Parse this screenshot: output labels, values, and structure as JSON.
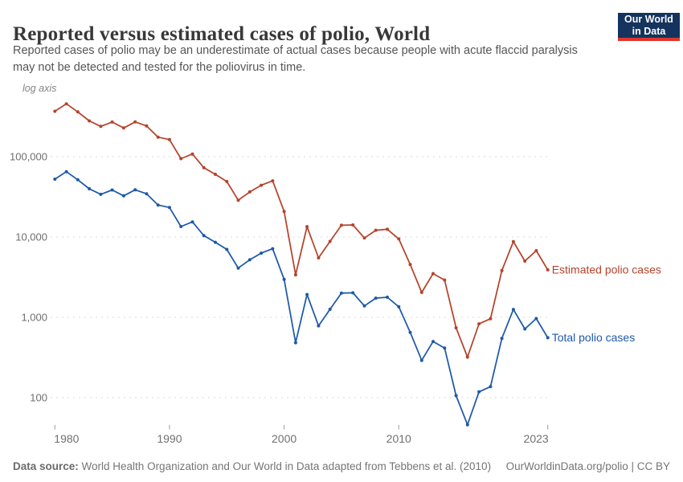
{
  "header": {
    "title": "Reported versus estimated cases of polio, World",
    "subtitle_line1": "Reported cases of polio may be an underestimate of actual cases because people with acute flaccid paralysis",
    "subtitle_line2": "may not be detected and tested for the poliovirus in time.",
    "logo": {
      "line1": "Our World",
      "line2": "in Data",
      "bg_color": "#14335D",
      "accent_color": "#E0352C"
    }
  },
  "chart_data": {
    "type": "line",
    "scale": "log",
    "log_axis_label": "log axis",
    "title": "Reported versus estimated cases of polio, World",
    "x_label": "",
    "y_label": "",
    "grid": "dashed-horizontal",
    "legend_position": "right-of-line-end",
    "x_ticks": [
      1980,
      1990,
      2000,
      2010,
      2023
    ],
    "x_tick_labels": [
      "1980",
      "1990",
      "2000",
      "2010",
      "2023"
    ],
    "y_ticks": [
      100,
      1000,
      10000,
      100000
    ],
    "y_tick_labels": [
      "100",
      "1,000",
      "10,000",
      "100,000"
    ],
    "ylim": [
      40,
      500000
    ],
    "xlim": [
      1980,
      2023
    ],
    "years": [
      1980,
      1981,
      1982,
      1983,
      1984,
      1985,
      1986,
      1987,
      1988,
      1989,
      1990,
      1991,
      1992,
      1993,
      1994,
      1995,
      1996,
      1997,
      1998,
      1999,
      2000,
      2001,
      2002,
      2003,
      2004,
      2005,
      2006,
      2007,
      2008,
      2009,
      2010,
      2011,
      2012,
      2013,
      2014,
      2015,
      2016,
      2017,
      2018,
      2019,
      2020,
      2021,
      2022,
      2023
    ],
    "series": [
      {
        "name": "Estimated polio cases",
        "color": "#B5432B",
        "values": [
          367500,
          455000,
          360500,
          278600,
          238000,
          269500,
          227500,
          270200,
          241500,
          175000,
          163100,
          94500,
          107800,
          72800,
          60200,
          49000,
          28700,
          36400,
          44100,
          50050,
          20790,
          3380,
          13450,
          5490,
          8810,
          13990,
          14120,
          9710,
          12130,
          12460,
          9460,
          4550,
          2040,
          3500,
          2910,
          740,
          320,
          830,
          960,
          3830,
          8770,
          5010,
          6760,
          3900
        ]
      },
      {
        "name": "Total polio cases",
        "color": "#1E59A8",
        "values": [
          52500,
          65000,
          51500,
          39800,
          34000,
          38500,
          32500,
          38600,
          34500,
          25000,
          23300,
          13500,
          15400,
          10400,
          8600,
          7000,
          4100,
          5200,
          6300,
          7150,
          2970,
          483,
          1922,
          784,
          1258,
          1998,
          2017,
          1387,
          1733,
          1780,
          1352,
          650,
          291,
          500,
          415,
          106,
          46,
          118,
          137,
          547,
          1253,
          716,
          966,
          557
        ]
      }
    ]
  },
  "footer": {
    "datasource_label": "Data source:",
    "datasource_text": " World Health Organization and Our World in Data adapted from Tebbens et al. (2010)",
    "link_text": "OurWorldinData.org/polio | CC BY"
  }
}
